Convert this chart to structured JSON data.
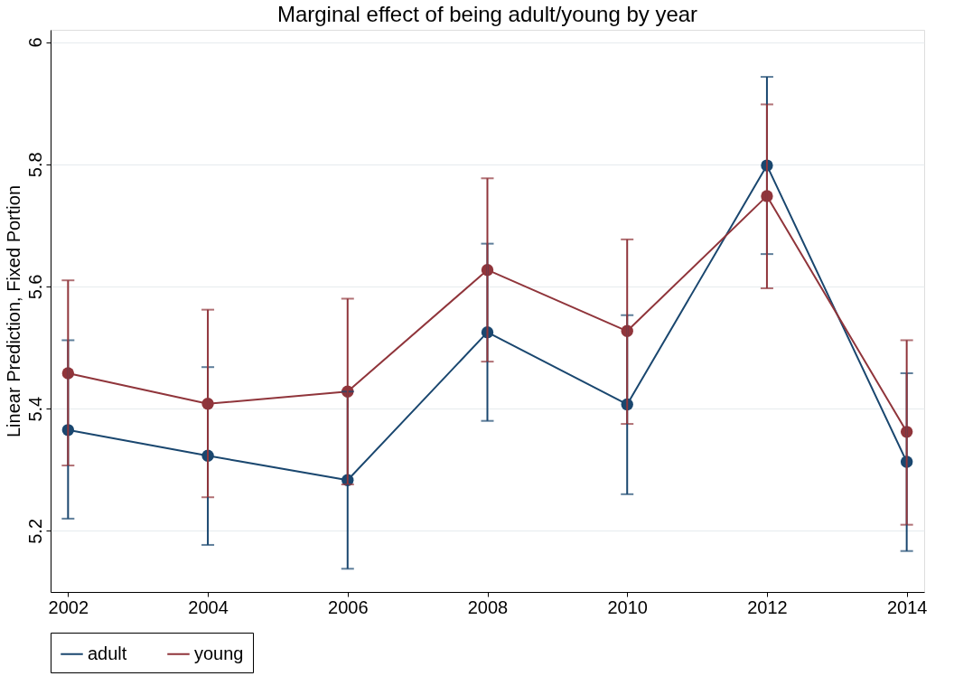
{
  "chart_data": {
    "type": "line",
    "title": "Marginal effect of being adult/young by year",
    "ylabel": "Linear Prediction, Fixed Portion",
    "x": [
      2002,
      2004,
      2006,
      2008,
      2010,
      2012,
      2014
    ],
    "series": [
      {
        "name": "adult",
        "color": "#1a476f",
        "values": [
          5.365,
          5.323,
          5.283,
          5.525,
          5.407,
          5.798,
          5.313
        ],
        "errors": [
          [
            5.22,
            5.512
          ],
          [
            5.177,
            5.468
          ],
          [
            5.138,
            5.428
          ],
          [
            5.38,
            5.67
          ],
          [
            5.26,
            5.553
          ],
          [
            5.653,
            5.943
          ],
          [
            5.167,
            5.458
          ]
        ]
      },
      {
        "name": "young",
        "color": "#90353b",
        "values": [
          5.458,
          5.408,
          5.428,
          5.627,
          5.527,
          5.748,
          5.362
        ],
        "errors": [
          [
            5.307,
            5.61
          ],
          [
            5.255,
            5.562
          ],
          [
            5.276,
            5.58
          ],
          [
            5.477,
            5.777
          ],
          [
            5.375,
            5.677
          ],
          [
            5.597,
            5.898
          ],
          [
            5.21,
            5.512
          ]
        ]
      }
    ],
    "xlim": [
      2001.75,
      2014.25
    ],
    "xticks": [
      2002,
      2004,
      2006,
      2008,
      2010,
      2012,
      2014
    ],
    "ylim": [
      5.1,
      6.02
    ],
    "yticks": [
      5.2,
      5.4,
      5.6,
      5.8,
      6
    ],
    "grid": "y",
    "legend": "bottom",
    "marker": "circle",
    "line_style": "solid"
  }
}
